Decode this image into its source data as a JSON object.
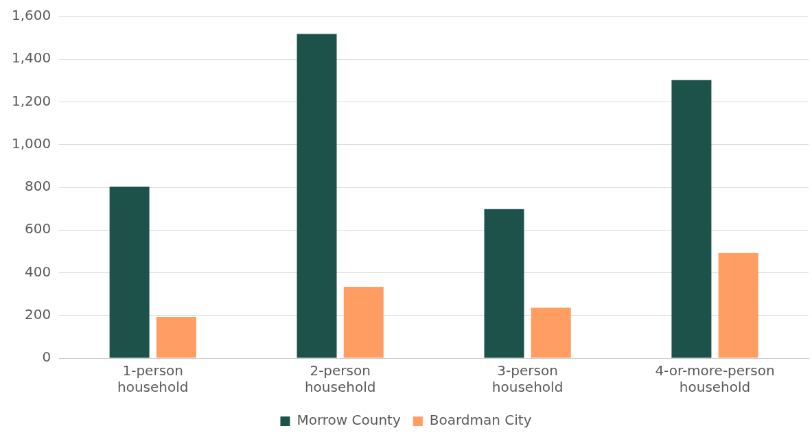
{
  "chart_data": {
    "type": "bar",
    "categories": [
      "1-person household",
      "2-person household",
      "3-person household",
      "4-or-more-person household"
    ],
    "series": [
      {
        "name": "Morrow County",
        "color": "#1d524b",
        "values": [
          803,
          1518,
          698,
          1302
        ]
      },
      {
        "name": "Boardman City",
        "color": "#ff9d62",
        "values": [
          193,
          334,
          236,
          492
        ]
      }
    ],
    "ylim": [
      0,
      1600
    ],
    "yticks": [
      {
        "value": 0,
        "label": "0"
      },
      {
        "value": 200,
        "label": "200"
      },
      {
        "value": 400,
        "label": "400"
      },
      {
        "value": 600,
        "label": "600"
      },
      {
        "value": 800,
        "label": "800"
      },
      {
        "value": 1000,
        "label": "1,000"
      },
      {
        "value": 1200,
        "label": "1,200"
      },
      {
        "value": 1400,
        "label": "1,400"
      },
      {
        "value": 1600,
        "label": "1,600"
      }
    ],
    "grid": "y",
    "legend": "bottom"
  }
}
